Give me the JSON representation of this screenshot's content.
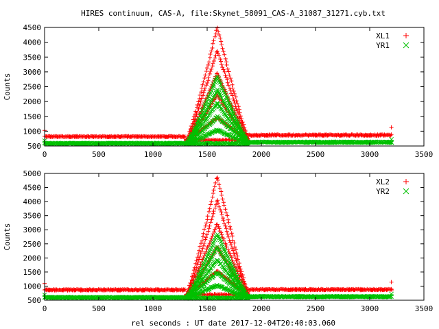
{
  "title": "HIRES continuum, CAS-A, file:Skynet_58091_CAS-A_31087_31271.cyb.txt",
  "colors": {
    "red_series": "#ff0000",
    "green_series": "#00c000",
    "axes": "#000000",
    "background": "#ffffff"
  },
  "chart_data": [
    {
      "type": "scatter",
      "ylabel": "Counts",
      "xlabel": "",
      "xlim": [
        0,
        3500
      ],
      "ylim": [
        500,
        4500
      ],
      "x_ticks": [
        0,
        500,
        1000,
        1500,
        2000,
        2500,
        3000,
        3500
      ],
      "y_ticks": [
        500,
        1000,
        1500,
        2000,
        2500,
        3000,
        3500,
        4000,
        4500
      ],
      "grid": false,
      "legend_position": "top-right",
      "series": [
        {
          "name": "XL1",
          "marker": "plus",
          "baseline_before": 820,
          "baseline_after": 870,
          "peak_x": 1590,
          "peak_max": 4500,
          "cluster_min": 700,
          "x_range": [
            0,
            3200
          ]
        },
        {
          "name": "YR1",
          "marker": "cross",
          "baseline_before": 590,
          "baseline_after": 630,
          "peak_x": 1590,
          "peak_max": 2850,
          "cluster_min": 580,
          "x_range": [
            0,
            3200
          ]
        }
      ]
    },
    {
      "type": "scatter",
      "ylabel": "Counts",
      "xlabel": "rel seconds : UT date 2017-12-04T20:40:03.060",
      "xlim": [
        0,
        3500
      ],
      "ylim": [
        500,
        5000
      ],
      "x_ticks": [
        0,
        500,
        1000,
        1500,
        2000,
        2500,
        3000,
        3500
      ],
      "y_ticks": [
        500,
        1000,
        1500,
        2000,
        2500,
        3000,
        3500,
        4000,
        4500,
        5000
      ],
      "grid": false,
      "legend_position": "top-right",
      "series": [
        {
          "name": "XL2",
          "marker": "plus",
          "baseline_before": 870,
          "baseline_after": 880,
          "peak_x": 1590,
          "peak_max": 4900,
          "cluster_min": 700,
          "x_range": [
            0,
            3200
          ]
        },
        {
          "name": "YR2",
          "marker": "cross",
          "baseline_before": 600,
          "baseline_after": 630,
          "peak_x": 1590,
          "peak_max": 2850,
          "cluster_min": 580,
          "x_range": [
            0,
            3200
          ]
        }
      ]
    }
  ]
}
